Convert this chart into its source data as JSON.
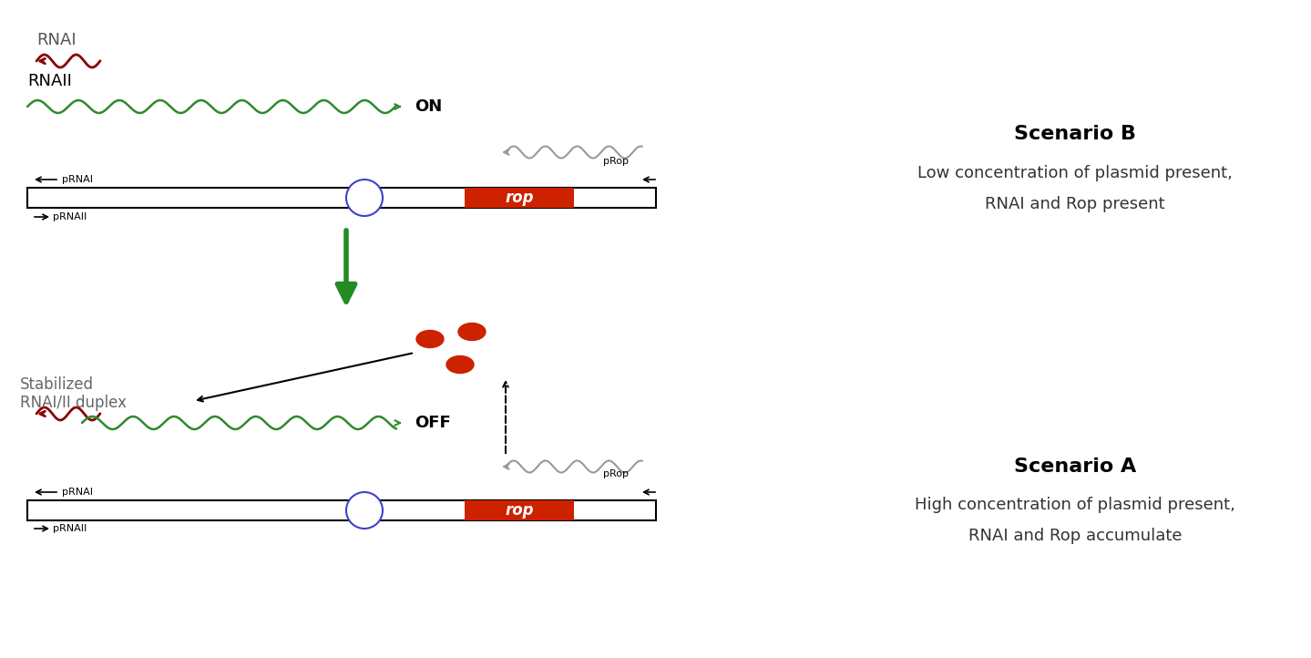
{
  "bg_color": "#ffffff",
  "scenario_b_title": "Scenario B",
  "scenario_b_line1": "Low concentration of plasmid present,",
  "scenario_b_line2": "RNAI and Rop present",
  "scenario_a_title": "Scenario A",
  "scenario_a_line1": "High concentration of plasmid present,",
  "scenario_a_line2": "RNAI and Rop accumulate",
  "rnai_label": "RNAI",
  "rnaii_label": "RNAII",
  "on_label": "ON",
  "off_label": "OFF",
  "rop_label": "rop",
  "prnai_label": "pRNAI",
  "prnaii_label": "pRNAII",
  "prop_label": "pRop",
  "stabilized_label": "Stabilized\nRNAI/II duplex",
  "dark_red": "#8B0000",
  "green": "#2d8a2d",
  "red": "#cc2200",
  "gray": "#888888",
  "black": "#000000",
  "dark_green_arrow": "#228B22"
}
